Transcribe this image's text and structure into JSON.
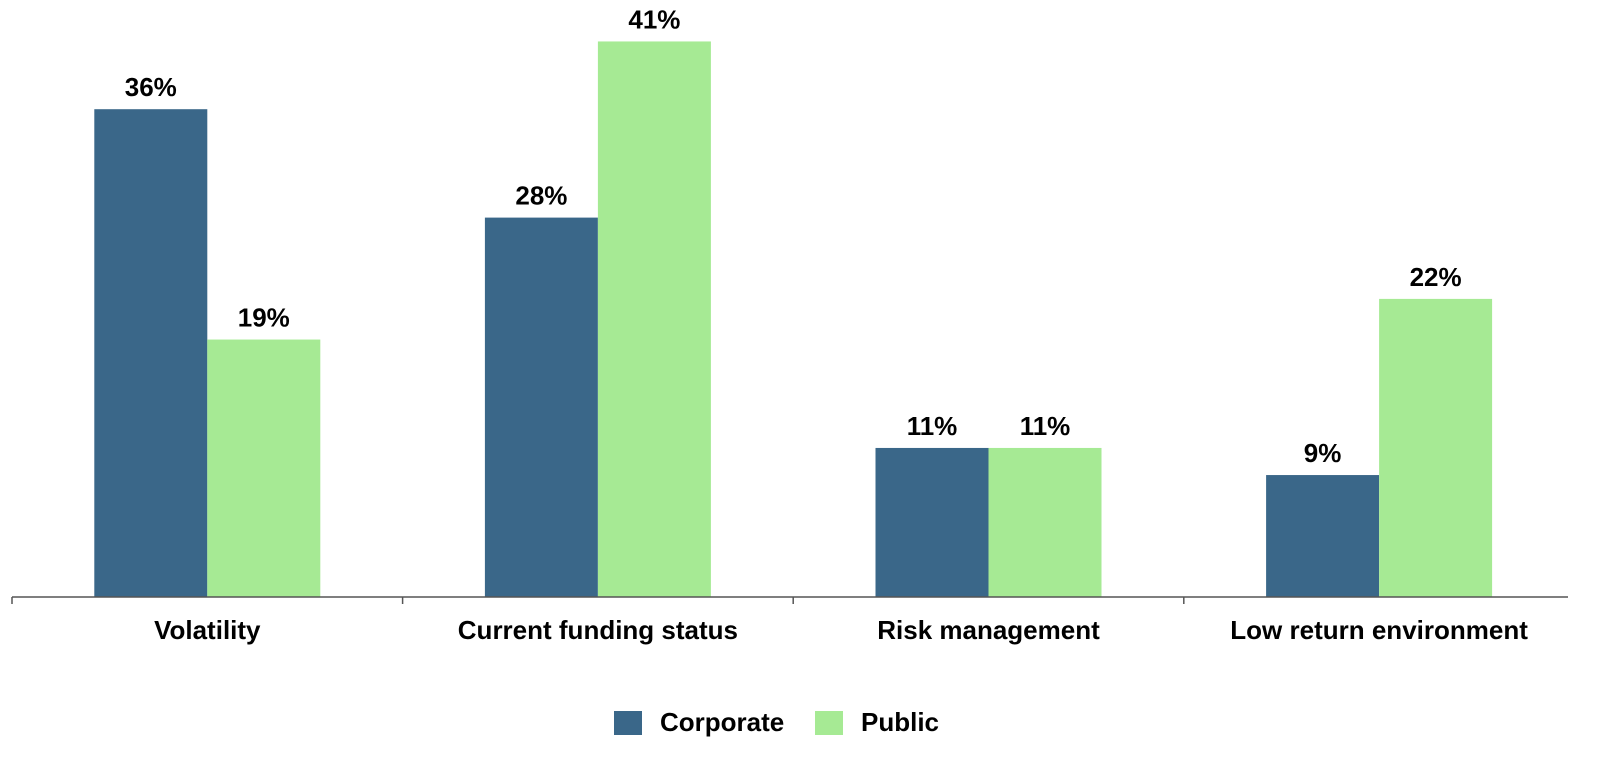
{
  "chart_data": {
    "type": "bar",
    "categories": [
      "Volatility",
      "Current funding status",
      "Risk management",
      "Low return environment"
    ],
    "series": [
      {
        "name": "Corporate",
        "color": "#3a6789",
        "values": [
          36,
          28,
          11,
          9
        ],
        "value_labels": [
          "36%",
          "28%",
          "11%",
          "9%"
        ]
      },
      {
        "name": "Public",
        "color": "#a6ea94",
        "values": [
          19,
          41,
          11,
          22
        ],
        "value_labels": [
          "19%",
          "41%",
          "11%",
          "22%"
        ]
      }
    ],
    "legend": "bottom"
  }
}
